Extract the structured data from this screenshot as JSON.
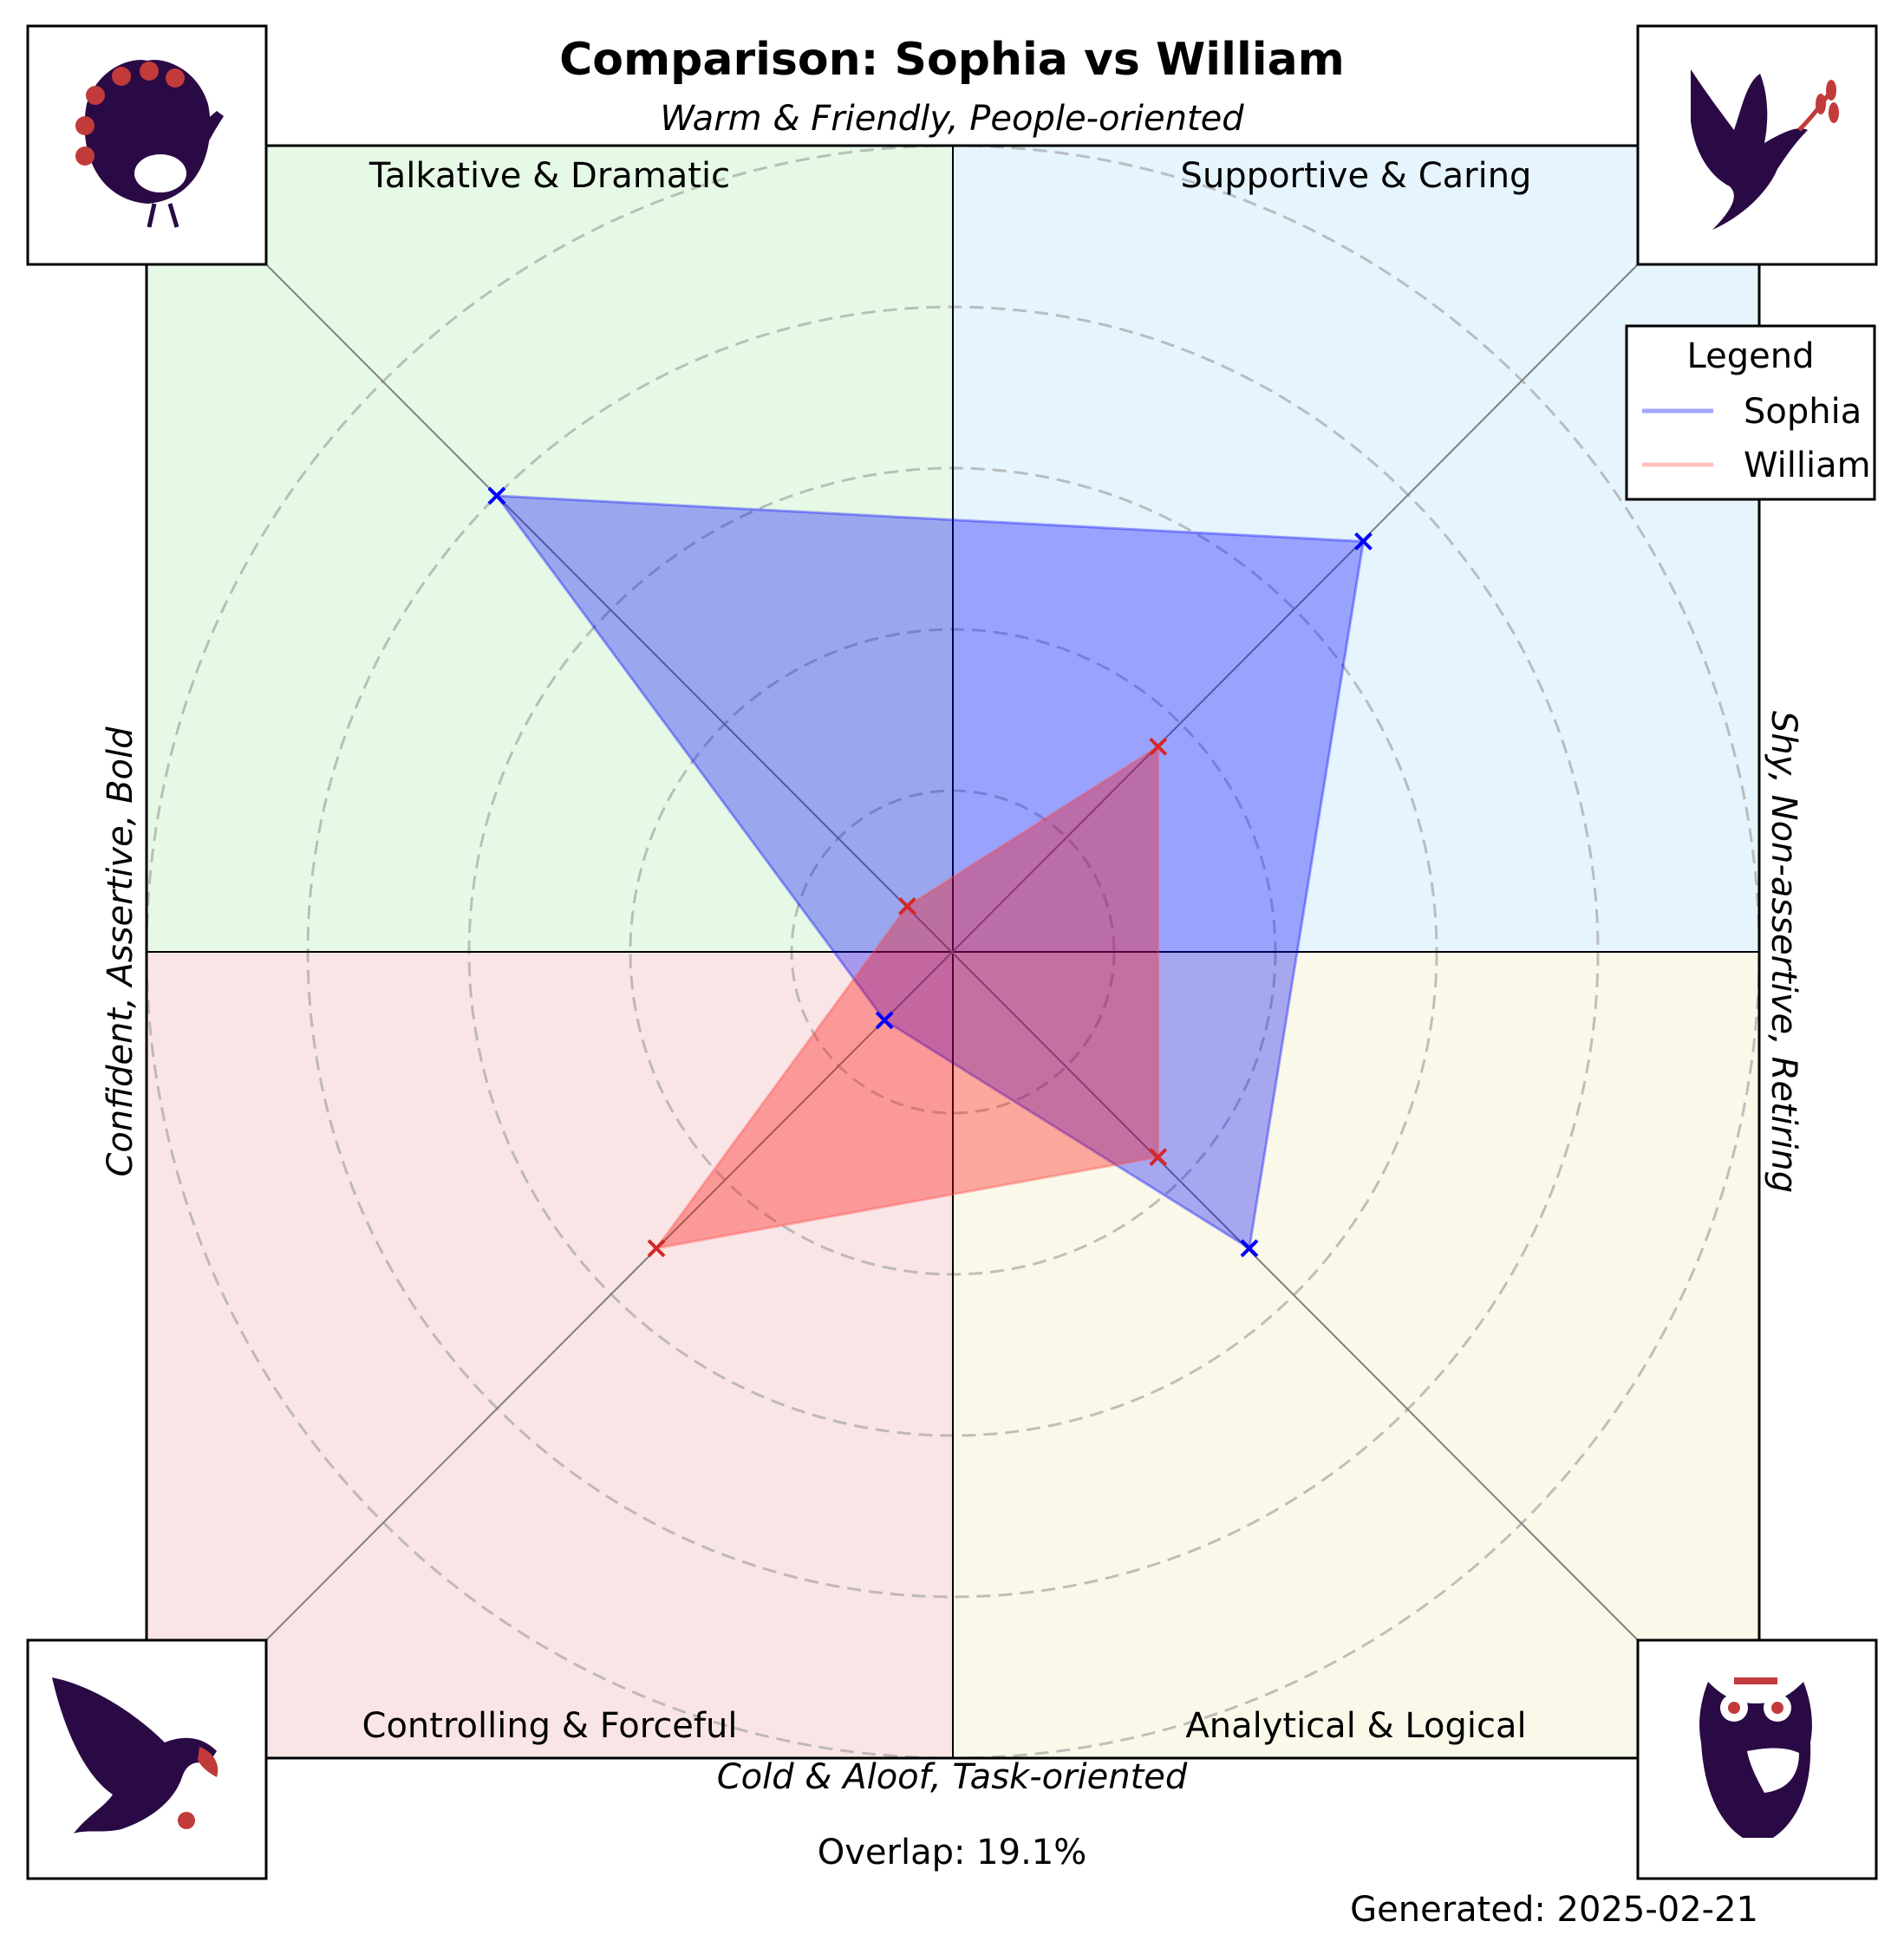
{
  "chart_data": {
    "type": "radar",
    "title": "Comparison: Sophia vs William",
    "axis_labels": {
      "top": "Warm & Friendly, People-oriented",
      "bottom": "Cold & Aloof, Task-oriented",
      "left": "Confident, Assertive, Bold",
      "right": "Shy, Non-assertive, Retiring"
    },
    "quadrants": [
      {
        "id": "top-left",
        "label": "Talkative & Dramatic",
        "color": "#e6f9e6",
        "icon": "peacock-icon"
      },
      {
        "id": "top-right",
        "label": "Supportive & Caring",
        "color": "#e5f4fd",
        "icon": "dove-icon"
      },
      {
        "id": "bottom-left",
        "label": "Controlling & Forceful",
        "color": "#f9e5e5",
        "icon": "eagle-icon"
      },
      {
        "id": "bottom-right",
        "label": "Analytical & Logical",
        "color": "#faf9e9",
        "icon": "owl-icon"
      }
    ],
    "axes": [
      "Talkative & Dramatic",
      "Supportive & Caring",
      "Analytical & Logical",
      "Controlling & Forceful"
    ],
    "r_max": 10,
    "rings": [
      2,
      4,
      6,
      8,
      10
    ],
    "series": [
      {
        "name": "Sophia",
        "color": "#0000ff",
        "fill": "#0000ff",
        "values": [
          8.0,
          7.2,
          5.2,
          1.2
        ]
      },
      {
        "name": "William",
        "color": "#ff4d4d",
        "fill": "#ff0000",
        "values": [
          0.8,
          3.6,
          3.6,
          5.2
        ]
      }
    ],
    "legend": {
      "title": "Legend",
      "position": "upper-right"
    },
    "grid": true
  },
  "overlap_text": "Overlap: 19.1%",
  "generated_text": "Generated: 2025-02-21",
  "colors": {
    "icon_primary": "#2a0a45",
    "icon_accent": "#c23b3b"
  }
}
